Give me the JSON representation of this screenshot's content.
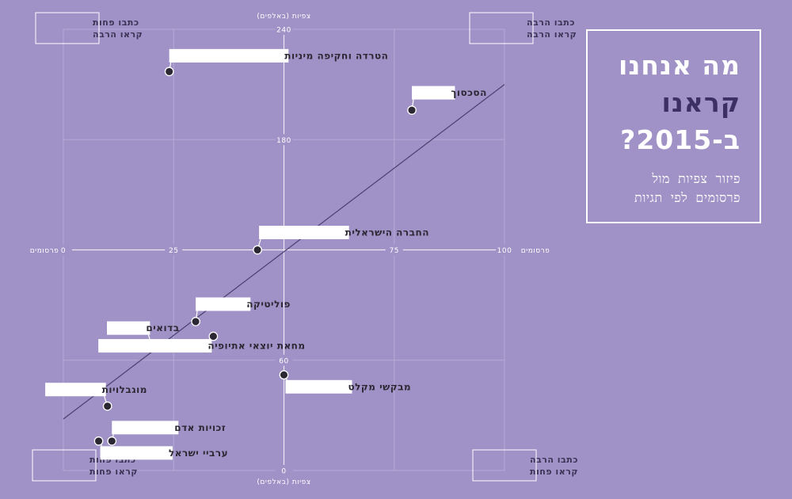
{
  "title_panel": {
    "title_lines": [
      "מה אנחנו",
      "קראנו",
      "ב-2015?"
    ],
    "subtitle_lines": [
      "פיזור צפיות מול",
      "פרסומים לפי תגיות"
    ]
  },
  "chart_data": {
    "type": "scatter",
    "x_axis": {
      "label": "פרסומים",
      "ticks": [
        "0",
        "25",
        "75",
        "100"
      ],
      "range": [
        0,
        100
      ],
      "center": 50
    },
    "y_axis": {
      "label": "צפיות (באלפים)",
      "ticks": [
        "0",
        "60",
        "180",
        "240"
      ],
      "range": [
        0,
        240
      ],
      "center": 120
    },
    "points": [
      {
        "label": "הטרדה וחקיפה מיניות",
        "x": 24,
        "y": 217
      },
      {
        "label": "הסכסוך",
        "x": 79,
        "y": 196
      },
      {
        "label": "החברה הישראלית",
        "x": 44,
        "y": 120
      },
      {
        "label": "פוליטיקה",
        "x": 30,
        "y": 81
      },
      {
        "label": "בדואים",
        "x": 20,
        "y": 68
      },
      {
        "label": "מחאת יוצאי אתיופיה",
        "x": 34,
        "y": 73
      },
      {
        "label": "מבקשי מקלט",
        "x": 50,
        "y": 52
      },
      {
        "label": "מוגבלויות",
        "x": 10,
        "y": 35
      },
      {
        "label": "זכויות אדם",
        "x": 11,
        "y": 16
      },
      {
        "label": "ערביי ישראל",
        "x": 8,
        "y": 16
      }
    ],
    "trendline": {
      "x": [
        0,
        100
      ],
      "y": [
        28,
        210
      ]
    },
    "quadrant_labels": [
      {
        "quadrant": "top-left",
        "lines": [
          "כתבו פחות",
          "קראו הרבה"
        ]
      },
      {
        "quadrant": "top-right",
        "lines": [
          "כתבו הרבה",
          "קראו הרבה"
        ]
      },
      {
        "quadrant": "bottom-left",
        "lines": [
          "כתבו פחות",
          "קראו פחות"
        ]
      },
      {
        "quadrant": "bottom-right",
        "lines": [
          "כתבו הרבה",
          "קראו פחות"
        ]
      }
    ],
    "colors": {
      "background": "#a092c7",
      "point": "#2b2733",
      "trendline": "#4a3f6e",
      "title_accent": "#3b2f63"
    }
  }
}
